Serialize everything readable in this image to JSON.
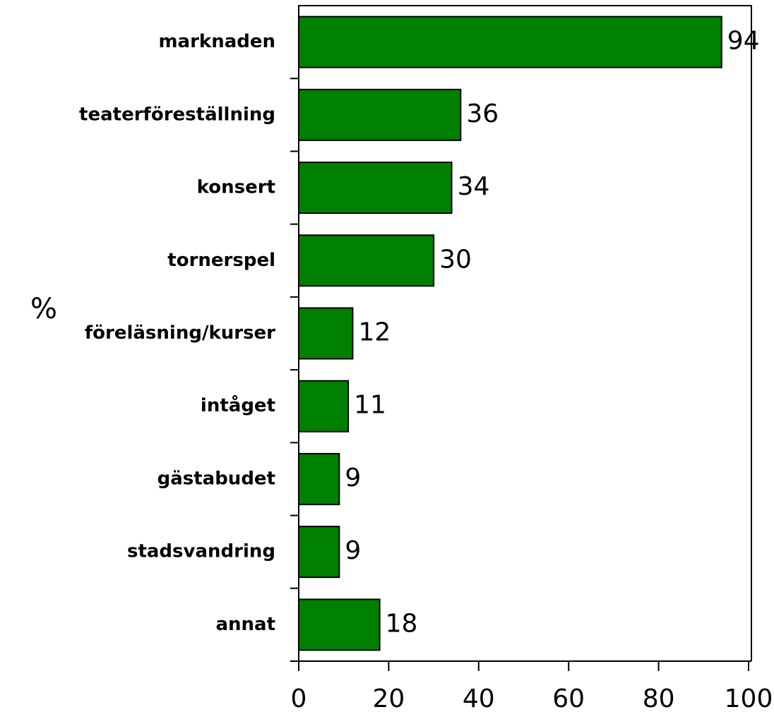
{
  "chart_data": {
    "type": "bar",
    "orientation": "horizontal",
    "ylabel": "%",
    "categories": [
      "marknaden",
      "teaterföreställning",
      "konsert",
      "tornerspel",
      "föreläsning/kurser",
      "intåget",
      "gästabudet",
      "stadsvandring",
      "annat"
    ],
    "values": [
      94,
      36,
      34,
      30,
      12,
      11,
      9,
      9,
      18
    ],
    "color": "#008000",
    "xlim": [
      0,
      100
    ],
    "xticks": [
      0,
      20,
      40,
      60,
      80,
      100
    ],
    "grid": false
  }
}
